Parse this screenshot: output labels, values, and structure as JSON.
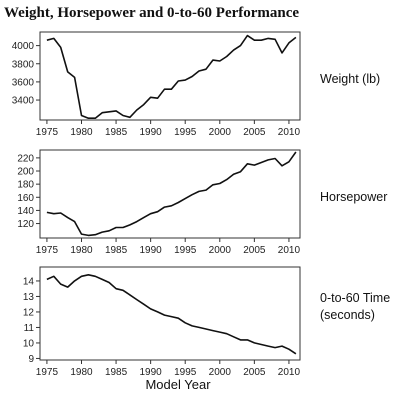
{
  "title": "Weight, Horsepower and 0-to-60 Performance",
  "chart_data": {
    "type": "line",
    "xlabel": "Model Year",
    "x": [
      1975,
      1976,
      1977,
      1978,
      1979,
      1980,
      1981,
      1982,
      1983,
      1984,
      1985,
      1986,
      1987,
      1988,
      1989,
      1990,
      1991,
      1992,
      1993,
      1994,
      1995,
      1996,
      1997,
      1998,
      1999,
      2000,
      2001,
      2002,
      2003,
      2004,
      2005,
      2006,
      2007,
      2008,
      2009,
      2010,
      2011
    ],
    "xticks": [
      1975,
      1980,
      1985,
      1990,
      1995,
      2000,
      2005,
      2010
    ],
    "xlim": [
      1974,
      2011.6
    ],
    "panels": [
      {
        "label": "Weight (lb)",
        "ylim": [
          3180,
          4150
        ],
        "yticks": [
          3400,
          3600,
          3800,
          4000
        ],
        "values": [
          4060,
          4080,
          3980,
          3710,
          3650,
          3230,
          3200,
          3200,
          3260,
          3270,
          3280,
          3230,
          3210,
          3290,
          3350,
          3430,
          3420,
          3520,
          3520,
          3610,
          3620,
          3660,
          3720,
          3740,
          3840,
          3830,
          3880,
          3950,
          4000,
          4110,
          4060,
          4060,
          4080,
          4070,
          3920,
          4030,
          4090
        ]
      },
      {
        "label": "Horsepower",
        "ylim": [
          98,
          232
        ],
        "yticks": [
          120,
          140,
          160,
          180,
          200,
          220
        ],
        "values": [
          137,
          135,
          136,
          129,
          123,
          104,
          102,
          103,
          107,
          109,
          114,
          114,
          118,
          123,
          129,
          135,
          138,
          145,
          147,
          152,
          158,
          164,
          169,
          171,
          179,
          181,
          187,
          195,
          199,
          211,
          209,
          213,
          217,
          219,
          208,
          214,
          229
        ]
      },
      {
        "label": "0-to-60 Time (seconds)",
        "label_lines": [
          "0-to-60 Time",
          "(seconds)"
        ],
        "ylim": [
          8.9,
          14.9
        ],
        "yticks": [
          9,
          10,
          11,
          12,
          13,
          14
        ],
        "values": [
          14.1,
          14.3,
          13.8,
          13.6,
          14.0,
          14.3,
          14.4,
          14.3,
          14.1,
          13.9,
          13.5,
          13.4,
          13.1,
          12.8,
          12.5,
          12.2,
          12.0,
          11.8,
          11.7,
          11.6,
          11.3,
          11.1,
          11.0,
          10.9,
          10.8,
          10.7,
          10.6,
          10.4,
          10.2,
          10.2,
          10.0,
          9.9,
          9.8,
          9.7,
          9.8,
          9.6,
          9.3
        ]
      }
    ]
  }
}
